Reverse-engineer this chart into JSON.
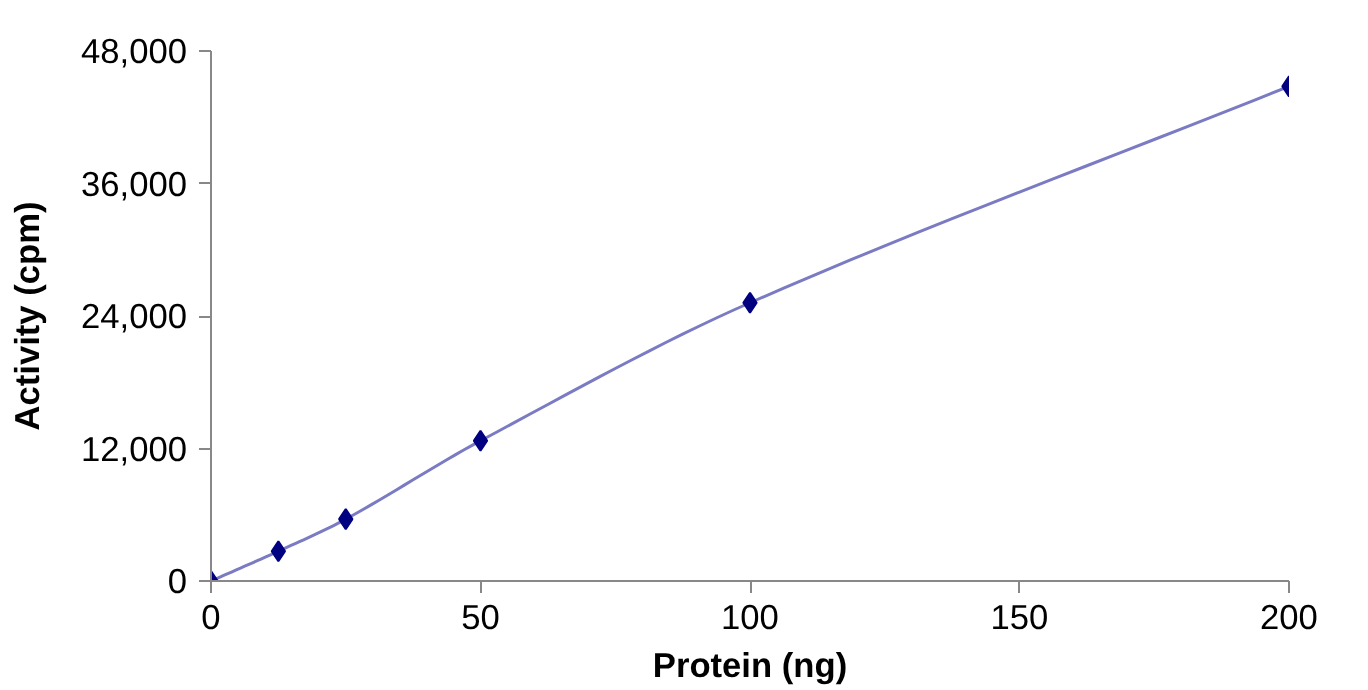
{
  "chart_data": {
    "type": "scatter",
    "xlabel": "Protein (ng)",
    "ylabel": "Activity (cpm)",
    "x": [
      0,
      12.5,
      25,
      50,
      100,
      200
    ],
    "series": [
      {
        "type": "line",
        "color": "#7b7bc4",
        "values": [
          0,
          2700,
          5600,
          12700,
          25200,
          44800
        ],
        "marker": "none"
      },
      {
        "color": "#000080",
        "values": [
          0,
          2700,
          5600,
          12700,
          25200,
          44800
        ],
        "marker": "diamond"
      }
    ],
    "xlim": [
      0,
      200
    ],
    "xticks": [
      0,
      50,
      100,
      150,
      200
    ],
    "ylim": [
      0,
      48000
    ],
    "yticks": [
      {
        "value": 0,
        "label": "0"
      },
      {
        "value": 12000,
        "label": "12,000"
      },
      {
        "value": 24000,
        "label": "24,000"
      },
      {
        "value": 36000,
        "label": "36,000"
      },
      {
        "value": 48000,
        "label": "48,000"
      }
    ],
    "grid": false
  }
}
